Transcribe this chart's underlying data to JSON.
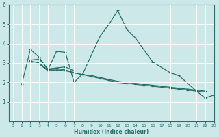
{
  "title": "",
  "xlabel": "Humidex (Indice chaleur)",
  "ylabel": "",
  "background_color": "#cce8e8",
  "grid_color": "#ffffff",
  "line_color": "#2a6e68",
  "xlim": [
    -0.5,
    23
  ],
  "ylim": [
    0,
    6
  ],
  "yticks": [
    1,
    2,
    3,
    4,
    5,
    6
  ],
  "xticks": [
    0,
    1,
    2,
    3,
    4,
    5,
    6,
    7,
    8,
    9,
    10,
    11,
    12,
    13,
    14,
    15,
    16,
    17,
    18,
    19,
    20,
    21,
    22,
    23
  ],
  "series": [
    {
      "x": [
        1,
        2,
        3,
        4,
        5,
        6,
        7,
        8,
        10,
        11,
        12,
        13,
        14,
        16,
        18,
        19,
        21,
        22,
        23
      ],
      "y": [
        1.9,
        3.7,
        3.3,
        2.65,
        3.6,
        3.55,
        2.0,
        2.45,
        4.4,
        5.0,
        5.7,
        4.75,
        4.3,
        3.05,
        2.5,
        2.35,
        1.55,
        1.2,
        1.35
      ]
    },
    {
      "x": [
        2,
        3,
        4,
        5,
        6,
        7
      ],
      "y": [
        3.15,
        3.2,
        2.7,
        2.75,
        2.8,
        2.6
      ]
    },
    {
      "x": [
        2,
        3,
        4,
        5,
        6,
        7,
        8,
        9,
        10,
        11,
        12,
        13,
        14,
        15,
        16,
        17,
        18,
        19,
        20,
        21,
        22
      ],
      "y": [
        3.1,
        3.0,
        2.65,
        2.7,
        2.65,
        2.5,
        2.4,
        2.3,
        2.2,
        2.1,
        2.0,
        1.95,
        1.9,
        1.85,
        1.8,
        1.75,
        1.7,
        1.65,
        1.6,
        1.55,
        1.5
      ]
    },
    {
      "x": [
        2,
        3,
        4,
        5,
        6,
        7,
        8,
        9,
        10,
        11,
        12,
        13,
        14,
        15,
        16,
        17,
        18,
        19,
        20,
        21,
        22
      ],
      "y": [
        3.0,
        2.95,
        2.6,
        2.65,
        2.6,
        2.5,
        2.4,
        2.35,
        2.25,
        2.15,
        2.05,
        2.0,
        1.95,
        1.9,
        1.85,
        1.8,
        1.75,
        1.7,
        1.65,
        1.6,
        1.55
      ]
    }
  ]
}
